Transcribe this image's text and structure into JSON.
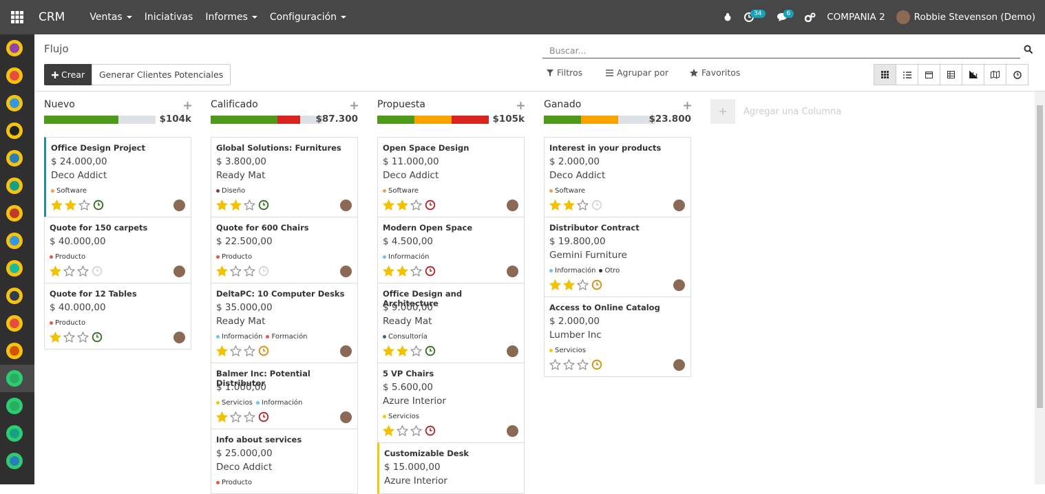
{
  "navbar": {
    "app": "CRM",
    "menus": [
      "Ventas",
      "Iniciativas",
      "Informes",
      "Configuración"
    ],
    "menus_with_dropdown": [
      true,
      false,
      true,
      true
    ],
    "activity_badge": 34,
    "message_badge": 6,
    "company": "COMPANIA 2",
    "user": "Robbie Stevenson (Demo)"
  },
  "control_panel": {
    "breadcrumb": "Flujo",
    "create": "Crear",
    "generate": "Generar Clientes Potenciales",
    "search_placeholder": "Buscar...",
    "filters": "Filtros",
    "group_by": "Agrupar por",
    "favorites": "Favoritos"
  },
  "add_column": "Agregar una Columna",
  "columns": [
    {
      "name": "Nuevo",
      "total": "$104k",
      "progress": [
        {
          "count": 2,
          "color": "#4e9a1b"
        },
        {
          "count": 1,
          "color": "#dee2e6"
        }
      ],
      "cards": [
        {
          "title": "Office Design Project",
          "amount": "$ 24.000,00",
          "company": "Deco Addict",
          "tags": [
            {
              "name": "Software",
              "color": "#f0a04b"
            }
          ],
          "stars": 2,
          "activity_color": "#2f6b1a",
          "border_color": "#268c9a"
        },
        {
          "title": "Quote for 150 carpets",
          "amount": "$ 40.000,00",
          "tags": [
            {
              "name": "Producto",
              "color": "#e8574b"
            }
          ],
          "stars": 1,
          "activity_color": "#d5d5d5"
        },
        {
          "title": "Quote for 12 Tables",
          "amount": "$ 40.000,00",
          "tags": [
            {
              "name": "Producto",
              "color": "#e8574b"
            }
          ],
          "stars": 1,
          "activity_color": "#2f6b1a"
        }
      ]
    },
    {
      "name": "Calificado",
      "total": "$87.300",
      "progress": [
        {
          "count": 3,
          "color": "#4e9a1b"
        },
        {
          "count": 1,
          "color": "#d9231f"
        },
        {
          "count": 1,
          "color": "#dee2e6"
        }
      ],
      "cards": [
        {
          "title": "Global Solutions: Furnitures",
          "amount": "$ 3.800,00",
          "company": "Ready Mat",
          "tags": [
            {
              "name": "Diseño",
              "color": "#7b3b55"
            }
          ],
          "stars": 2,
          "activity_color": "#2f6b1a"
        },
        {
          "title": "Quote for 600 Chairs",
          "amount": "$ 22.500,00",
          "tags": [
            {
              "name": "Producto",
              "color": "#e8574b"
            }
          ],
          "stars": 1,
          "activity_color": "#d5d5d5"
        },
        {
          "title": "DeltaPC: 10 Computer Desks",
          "amount": "$ 35.000,00",
          "company": "Ready Mat",
          "tags": [
            {
              "name": "Información",
              "color": "#6cc1ed"
            },
            {
              "name": "Formación",
              "color": "#e8574b"
            }
          ],
          "stars": 1,
          "activity_color": "#d68a00"
        },
        {
          "title": "Balmer Inc: Potential Distributor",
          "amount": "$ 1.000,00",
          "tags": [
            {
              "name": "Servicios",
              "color": "#f4c609"
            },
            {
              "name": "Información",
              "color": "#6cc1ed"
            }
          ],
          "stars": 1,
          "activity_color": "#b51f1f"
        },
        {
          "title": "Info about services",
          "amount": "$ 25.000,00",
          "company": "Deco Addict",
          "tags": [
            {
              "name": "Producto",
              "color": "#e8574b"
            }
          ]
        }
      ]
    },
    {
      "name": "Propuesta",
      "total": "$105k",
      "progress": [
        {
          "count": 2,
          "color": "#4e9a1b"
        },
        {
          "count": 2,
          "color": "#f7a400"
        },
        {
          "count": 2,
          "color": "#d9231f"
        }
      ],
      "cards": [
        {
          "title": "Open Space Design",
          "amount": "$ 11.000,00",
          "company": "Deco Addict",
          "tags": [
            {
              "name": "Software",
              "color": "#f0a04b"
            }
          ],
          "stars": 2,
          "activity_color": "#b51f1f"
        },
        {
          "title": "Modern Open Space",
          "amount": "$ 4.500,00",
          "tags": [
            {
              "name": "Información",
              "color": "#6cc1ed"
            }
          ],
          "stars": 2,
          "activity_color": "#b51f1f"
        },
        {
          "title": "Office Design and Architecture",
          "amount": "$ 9.000,00",
          "company": "Ready Mat",
          "tags": [
            {
              "name": "Consultoría",
              "color": "#2c6e73"
            }
          ],
          "stars": 2,
          "activity_color": "#2f6b1a"
        },
        {
          "title": "5 VP Chairs",
          "amount": "$ 5.600,00",
          "company": "Azure Interior",
          "tags": [
            {
              "name": "Servicios",
              "color": "#f4c609"
            }
          ],
          "stars": 1,
          "activity_color": "#b51f1f"
        },
        {
          "title": "Customizable Desk",
          "amount": "$ 15.000,00",
          "company": "Azure Interior",
          "tags": [],
          "border_color": "#f4c609"
        }
      ]
    },
    {
      "name": "Ganado",
      "total": "$23.800",
      "progress": [
        {
          "count": 1,
          "color": "#4e9a1b"
        },
        {
          "count": 1,
          "color": "#f7a400"
        },
        {
          "count": 1,
          "color": "#dee2e6"
        }
      ],
      "cards": [
        {
          "title": "Interest in your products",
          "amount": "$ 2.000,00",
          "company": "Deco Addict",
          "tags": [
            {
              "name": "Software",
              "color": "#f0a04b"
            }
          ],
          "stars": 2,
          "activity_color": "#d5d5d5"
        },
        {
          "title": "Distributor Contract",
          "amount": "$ 19.800,00",
          "company": "Gemini Furniture",
          "tags": [
            {
              "name": "Información",
              "color": "#6cc1ed"
            },
            {
              "name": "Otro",
              "color": "#333333"
            }
          ],
          "stars": 2,
          "activity_color": "#d68a00"
        },
        {
          "title": "Access to Online Catalog",
          "amount": "$ 2.000,00",
          "company": "Lumber Inc",
          "tags": [
            {
              "name": "Servicios",
              "color": "#f4c609"
            }
          ],
          "stars": 0,
          "activity_color": "#d68a00"
        }
      ]
    }
  ]
}
